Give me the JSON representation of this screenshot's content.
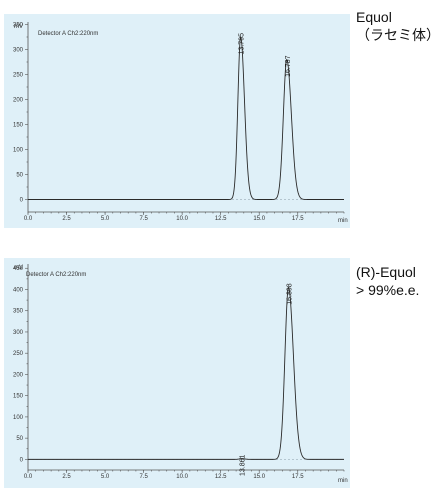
{
  "chart_data": [
    {
      "type": "line",
      "caption_lines": [
        "Equol",
        "（ラセミ体）"
      ],
      "detector_label": "Detector A Ch2:220nm",
      "ylabel": "mV",
      "xlabel": "min",
      "xlim": [
        0.0,
        20.5
      ],
      "ylim": [
        -25,
        355
      ],
      "x_ticks": [
        "0.0",
        "2.5",
        "5.0",
        "7.5",
        "10.0",
        "12.5",
        "15.0",
        "17.5"
      ],
      "y_ticks": [
        "0",
        "50",
        "100",
        "150",
        "200",
        "250",
        "300",
        "350"
      ],
      "baseline": 0,
      "peaks": [
        {
          "label": "13.795",
          "rt": 13.795,
          "height": 325,
          "sigma_left": 0.18,
          "sigma_right": 0.25
        },
        {
          "label": "16.787",
          "rt": 16.787,
          "height": 280,
          "sigma_left": 0.22,
          "sigma_right": 0.3
        }
      ],
      "colors": {
        "background": "#dff0f8",
        "trace": "#2a2a2a",
        "baseline": "#8a9aa6"
      }
    },
    {
      "type": "line",
      "caption_lines": [
        "(R)-Equol",
        "> 99%e.e."
      ],
      "detector_label": "Detector A Ch2:220nm",
      "ylabel": "mV",
      "xlabel": "min",
      "xlim": [
        0.0,
        20.5
      ],
      "ylim": [
        -25,
        460
      ],
      "x_ticks": [
        "0.0",
        "2.5",
        "5.0",
        "7.5",
        "10.0",
        "12.5",
        "15.0",
        "17.5"
      ],
      "y_ticks": [
        "0",
        "50",
        "100",
        "150",
        "200",
        "250",
        "300",
        "350",
        "400",
        "450"
      ],
      "baseline": 0,
      "peaks": [
        {
          "label": "13.861",
          "rt": 13.861,
          "height": 2,
          "sigma_left": 0.15,
          "sigma_right": 0.2
        },
        {
          "label": "16.898",
          "rt": 16.898,
          "height": 405,
          "sigma_left": 0.23,
          "sigma_right": 0.32
        }
      ],
      "colors": {
        "background": "#dff0f8",
        "trace": "#2a2a2a",
        "baseline": "#8a9aa6"
      }
    }
  ]
}
